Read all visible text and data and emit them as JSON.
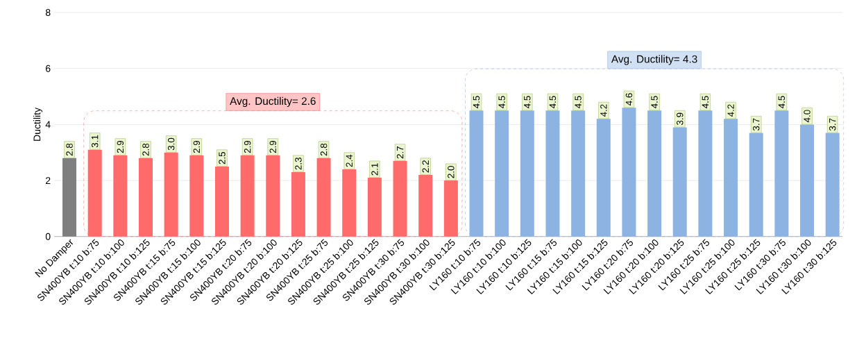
{
  "chart_data": {
    "type": "bar",
    "ylabel": "Ductility",
    "categories": [
      "No Damper",
      "SN400YB t:10 b:75",
      "SN400YB t:10 b:100",
      "SN400YB t:10 b:125",
      "SN400YB t:15 b:75",
      "SN400YB t:15 b:100",
      "SN400YB t:15 b:125",
      "SN400YB t:20 b:75",
      "SN400YB t:20 b:100",
      "SN400YB t:20 b:125",
      "SN400YB t:25 b:75",
      "SN400YB t:25 b:100",
      "SN400YB t:25 b:125",
      "SN400YB t:30 b:75",
      "SN400YB t:30 b:100",
      "SN400YB t:30 b:125",
      "LY160 t:10 b:75",
      "LY160 t:10 b:100",
      "LY160 t:10 b:125",
      "LY160 t:15 b:75",
      "LY160 t:15 b:100",
      "LY160 t:15 b:125",
      "LY160 t:20 b:75",
      "LY160 t:20 b:100",
      "LY160 t:20 b:125",
      "LY160 t:25 b:75",
      "LY160 t:25 b:100",
      "LY160 t:25 b:125",
      "LY160 t:30 b:75",
      "LY160 t:30 b:100",
      "LY160 t:30 b:125"
    ],
    "values": [
      2.8,
      3.1,
      2.9,
      2.8,
      3.0,
      2.9,
      2.5,
      2.9,
      2.9,
      2.3,
      2.8,
      2.4,
      2.1,
      2.7,
      2.2,
      2.0,
      4.5,
      4.5,
      4.5,
      4.5,
      4.5,
      4.2,
      4.6,
      4.5,
      3.9,
      4.5,
      4.2,
      3.7,
      4.5,
      4.0,
      3.7
    ],
    "value_labels": [
      "2.8",
      "3.1",
      "2.9",
      "2.8",
      "3.0",
      "2.9",
      "2.5",
      "2.9",
      "2.9",
      "2.3",
      "2.8",
      "2.4",
      "2.1",
      "2.7",
      "2.2",
      "2.0",
      "4.5",
      "4.5",
      "4.5",
      "4.5",
      "4.5",
      "4.2",
      "4.6",
      "4.5",
      "3.9",
      "4.5",
      "4.2",
      "3.7",
      "4.5",
      "4.0",
      "3.7"
    ],
    "colors": [
      "#7f7f7f",
      "#ff6b6b",
      "#ff6b6b",
      "#ff6b6b",
      "#ff6b6b",
      "#ff6b6b",
      "#ff6b6b",
      "#ff6b6b",
      "#ff6b6b",
      "#ff6b6b",
      "#ff6b6b",
      "#ff6b6b",
      "#ff6b6b",
      "#ff6b6b",
      "#ff6b6b",
      "#ff6b6b",
      "#8db3e2",
      "#8db3e2",
      "#8db3e2",
      "#8db3e2",
      "#8db3e2",
      "#8db3e2",
      "#8db3e2",
      "#8db3e2",
      "#8db3e2",
      "#8db3e2",
      "#8db3e2",
      "#8db3e2",
      "#8db3e2",
      "#8db3e2",
      "#8db3e2"
    ],
    "annotations": [
      "Avg. Ductility= 2.6",
      "Avg. Ductility= 4.3"
    ],
    "ylim": [
      0,
      8
    ],
    "yticks": [
      0,
      2,
      4,
      6,
      8
    ],
    "grid": "y"
  }
}
